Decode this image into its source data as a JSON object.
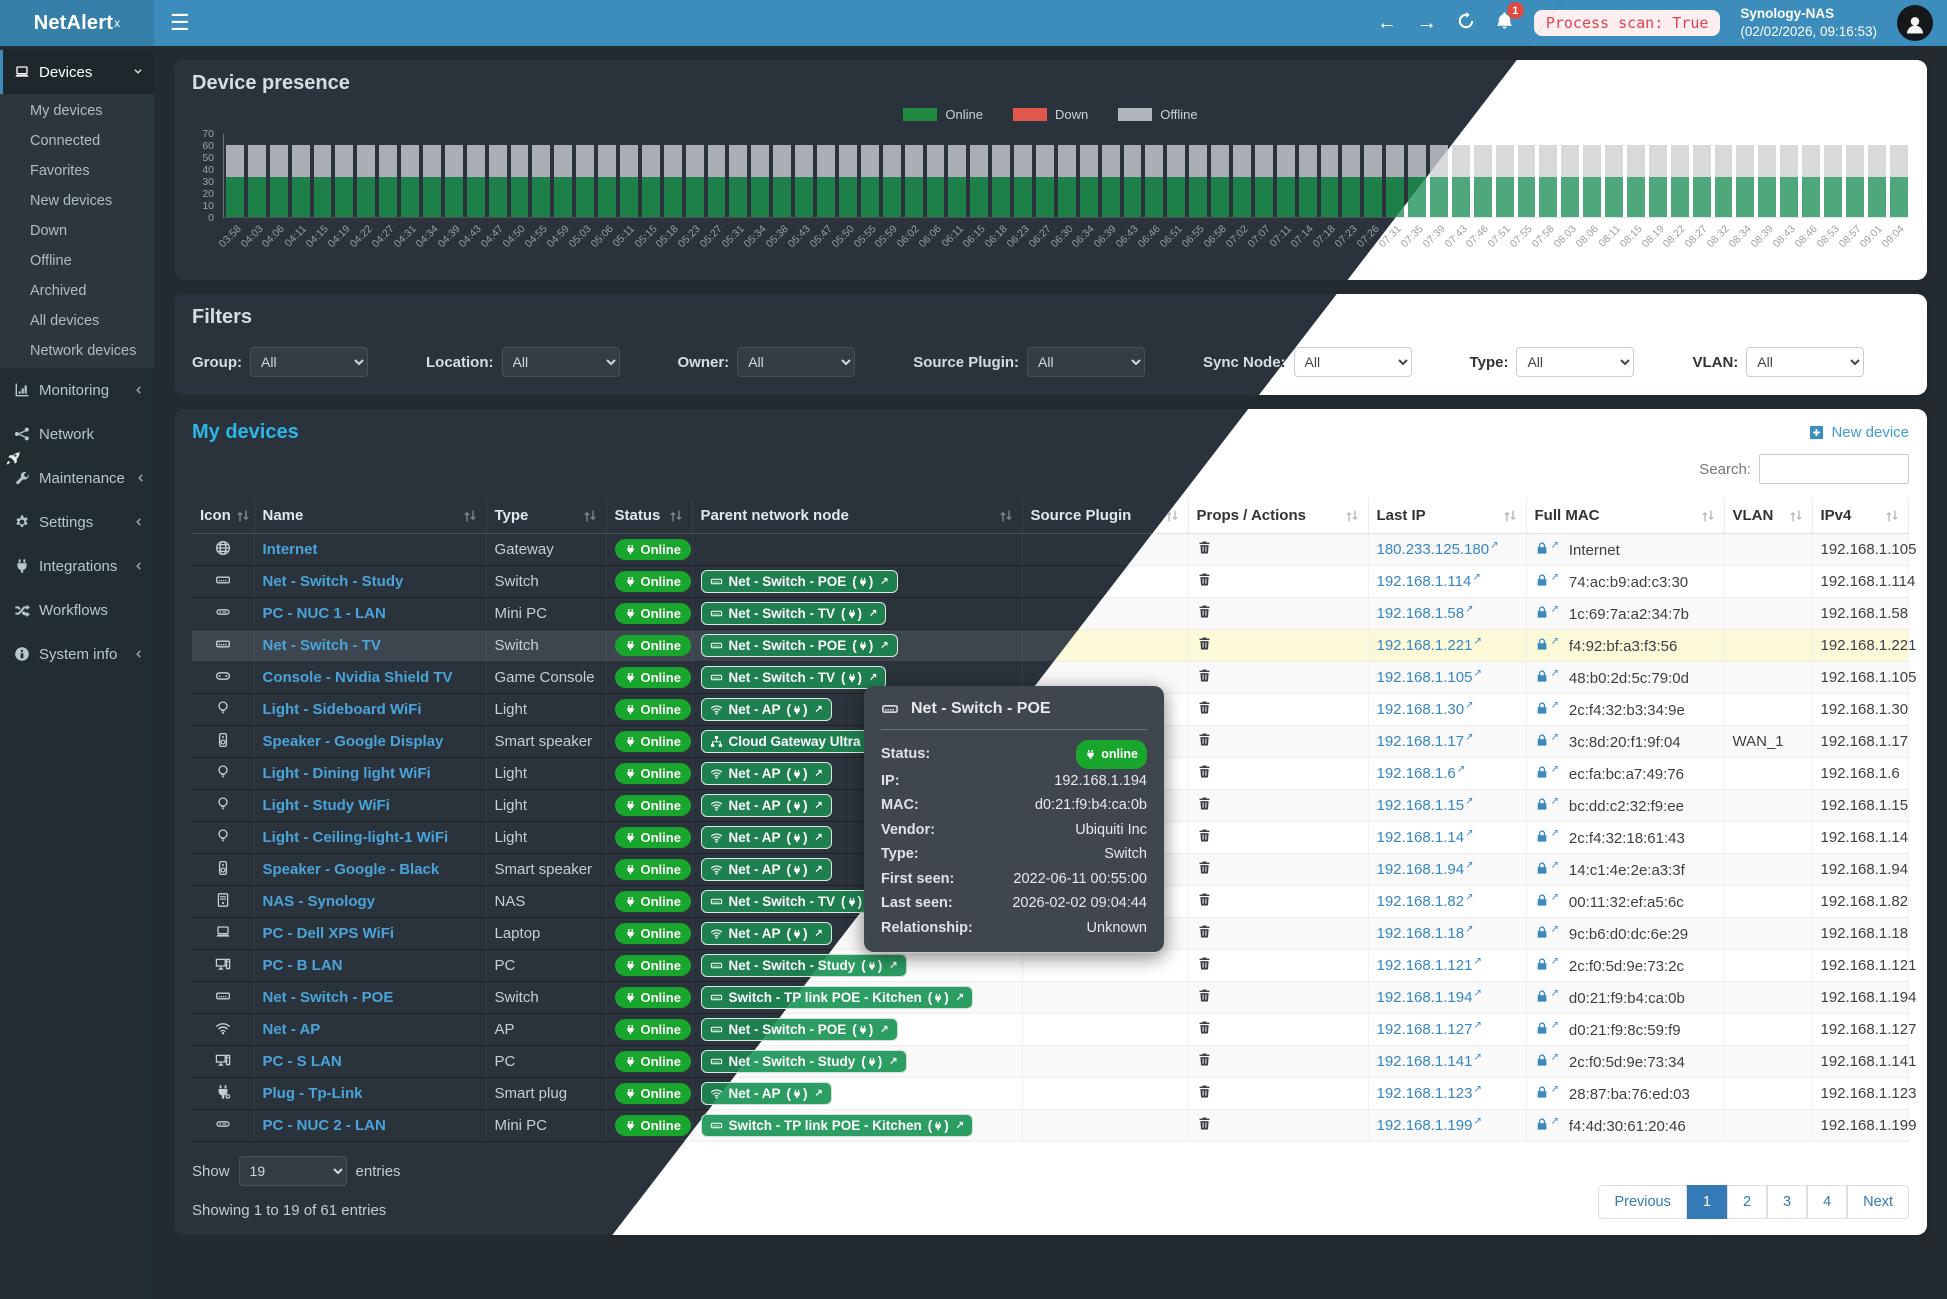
{
  "header": {
    "brand": "NetAlert",
    "brand_sup": "x",
    "notification_count": "1",
    "process_scan": "Process scan: True",
    "nas_name": "Synology-NAS",
    "nas_timestamp": "(02/02/2026, 09:16:53)"
  },
  "sidebar": {
    "sections": [
      {
        "label": "Devices",
        "icon": "laptop",
        "chevron": "down",
        "active": true,
        "items": [
          "My devices",
          "Connected",
          "Favorites",
          "New devices",
          "Down",
          "Offline",
          "Archived",
          "All devices",
          "Network devices"
        ]
      },
      {
        "label": "Monitoring",
        "icon": "chart",
        "chevron": "left"
      },
      {
        "label": "Network",
        "icon": "network",
        "chevron": ""
      },
      {
        "label": "Maintenance",
        "icon": "wrench",
        "chevron": "left"
      },
      {
        "label": "Settings",
        "icon": "gear",
        "chevron": "left"
      },
      {
        "label": "Integrations",
        "icon": "plug",
        "chevron": "left"
      },
      {
        "label": "Workflows",
        "icon": "shuffle",
        "chevron": ""
      },
      {
        "label": "System info",
        "icon": "info",
        "chevron": "left"
      }
    ]
  },
  "chart_data": {
    "type": "bar",
    "title": "Device presence",
    "stacked": true,
    "legend_position": "top-center",
    "ylim": [
      0,
      70
    ],
    "yticks": [
      0,
      10,
      20,
      30,
      40,
      50,
      60,
      70
    ],
    "legend": [
      {
        "label": "Online",
        "color": "#21883f"
      },
      {
        "label": "Down",
        "color": "#e2574c"
      },
      {
        "label": "Offline",
        "color": "#b1b6bc"
      }
    ],
    "x": [
      "03:58",
      "04:03",
      "04:06",
      "04:11",
      "04:15",
      "04:19",
      "04:22",
      "04:27",
      "04:31",
      "04:34",
      "04:39",
      "04:43",
      "04:47",
      "04:50",
      "04:55",
      "04:59",
      "05:03",
      "05:06",
      "05:11",
      "05:15",
      "05:18",
      "05:23",
      "05:27",
      "05:31",
      "05:34",
      "05:38",
      "05:43",
      "05:47",
      "05:50",
      "05:55",
      "05:59",
      "06:02",
      "06:06",
      "06:11",
      "06:15",
      "06:18",
      "06:23",
      "06:27",
      "06:30",
      "06:34",
      "06:39",
      "06:43",
      "06:46",
      "06:51",
      "06:55",
      "06:58",
      "07:02",
      "07:07",
      "07:11",
      "07:14",
      "07:18",
      "07:23",
      "07:26",
      "07:31",
      "07:35",
      "07:39",
      "07:43",
      "07:46",
      "07:51",
      "07:55",
      "07:58",
      "08:03",
      "08:06",
      "08:11",
      "08:15",
      "08:19",
      "08:22",
      "08:27",
      "08:32",
      "08:34",
      "08:39",
      "08:43",
      "08:46",
      "08:53",
      "08:57",
      "09:01",
      "09:04"
    ],
    "series": [
      {
        "name": "Online",
        "values": [
          34,
          34,
          34,
          34,
          34,
          34,
          34,
          34,
          34,
          34,
          34,
          34,
          34,
          34,
          34,
          34,
          34,
          34,
          34,
          34,
          34,
          34,
          34,
          34,
          34,
          34,
          34,
          34,
          34,
          34,
          34,
          34,
          34,
          34,
          34,
          34,
          34,
          34,
          34,
          34,
          34,
          34,
          34,
          34,
          34,
          34,
          34,
          34,
          34,
          34,
          34,
          34,
          34,
          34,
          34,
          34,
          34,
          34,
          34,
          34,
          34,
          34,
          34,
          34,
          34,
          34,
          34,
          34,
          34,
          34,
          34,
          34,
          34,
          34,
          34,
          34,
          34
        ]
      },
      {
        "name": "Down",
        "values": [
          0,
          0,
          0,
          0,
          0,
          0,
          0,
          0,
          0,
          0,
          0,
          0,
          0,
          0,
          0,
          0,
          0,
          0,
          0,
          0,
          0,
          0,
          0,
          0,
          0,
          0,
          0,
          0,
          0,
          0,
          0,
          0,
          0,
          0,
          0,
          0,
          0,
          0,
          0,
          0,
          0,
          0,
          0,
          0,
          0,
          0,
          0,
          0,
          0,
          0,
          0,
          0,
          0,
          0,
          0,
          0,
          0,
          0,
          0,
          0,
          0,
          0,
          0,
          0,
          0,
          0,
          0,
          0,
          0,
          0,
          0,
          0,
          0,
          0,
          0,
          0,
          0
        ]
      },
      {
        "name": "Offline",
        "values": [
          27,
          27,
          27,
          27,
          27,
          27,
          27,
          27,
          27,
          27,
          27,
          27,
          27,
          27,
          27,
          27,
          27,
          27,
          27,
          27,
          27,
          27,
          27,
          27,
          27,
          27,
          27,
          27,
          27,
          27,
          27,
          27,
          27,
          27,
          27,
          27,
          27,
          27,
          27,
          27,
          27,
          27,
          27,
          27,
          27,
          27,
          27,
          27,
          27,
          27,
          27,
          27,
          27,
          27,
          27,
          27,
          27,
          27,
          27,
          27,
          27,
          27,
          27,
          27,
          27,
          27,
          27,
          27,
          27,
          27,
          27,
          27,
          27,
          27,
          27,
          27,
          27
        ]
      }
    ]
  },
  "filters": {
    "title": "Filters",
    "items": [
      {
        "label": "Group:",
        "value": "All"
      },
      {
        "label": "Location:",
        "value": "All"
      },
      {
        "label": "Owner:",
        "value": "All"
      },
      {
        "label": "Source Plugin:",
        "value": "All"
      },
      {
        "label": "Sync Node:",
        "value": "All"
      },
      {
        "label": "Type:",
        "value": "All"
      },
      {
        "label": "VLAN:",
        "value": "All"
      }
    ]
  },
  "devices": {
    "title": "My devices",
    "new_device_label": "New device",
    "search_label": "Search:",
    "search_value": "",
    "columns": [
      "Icon",
      "Name",
      "Type",
      "Status",
      "Parent network node",
      "Source Plugin",
      "Props / Actions",
      "Last IP",
      "Full MAC",
      "VLAN",
      "IPv4"
    ],
    "rows": [
      {
        "icon": "globe",
        "name": "Internet",
        "type": "Gateway",
        "status": "Online",
        "parent": null,
        "source_plugin": "",
        "last_ip": "180.233.125.180",
        "mac": "Internet",
        "vlan": "",
        "ipv4": "192.168.1.105",
        "highlight": false
      },
      {
        "icon": "switch",
        "name": "Net - Switch - Study",
        "type": "Switch",
        "status": "Online",
        "parent": {
          "icon": "switch",
          "label": "Net - Switch - POE"
        },
        "source_plugin": "",
        "last_ip": "192.168.1.114",
        "mac": "74:ac:b9:ad:c3:30",
        "vlan": "",
        "ipv4": "192.168.1.114",
        "highlight": false
      },
      {
        "icon": "minipc",
        "name": "PC - NUC 1 - LAN",
        "type": "Mini PC",
        "status": "Online",
        "parent": {
          "icon": "switch",
          "label": "Net - Switch - TV"
        },
        "source_plugin": "",
        "last_ip": "192.168.1.58",
        "mac": "1c:69:7a:a2:34:7b",
        "vlan": "",
        "ipv4": "192.168.1.58",
        "highlight": false
      },
      {
        "icon": "switch",
        "name": "Net - Switch - TV",
        "type": "Switch",
        "status": "Online",
        "parent": {
          "icon": "switch",
          "label": "Net - Switch - POE"
        },
        "source_plugin": "",
        "last_ip": "192.168.1.221",
        "mac": "f4:92:bf:a3:f3:56",
        "vlan": "",
        "ipv4": "192.168.1.221",
        "highlight": true
      },
      {
        "icon": "gamepad",
        "name": "Console - Nvidia Shield TV",
        "type": "Game Console",
        "status": "Online",
        "parent": {
          "icon": "switch",
          "label": "Net - Switch - TV"
        },
        "source_plugin": "",
        "last_ip": "192.168.1.105",
        "mac": "48:b0:2d:5c:79:0d",
        "vlan": "",
        "ipv4": "192.168.1.105",
        "highlight": false
      },
      {
        "icon": "bulb",
        "name": "Light - Sideboard WiFi",
        "type": "Light",
        "status": "Online",
        "parent": {
          "icon": "wifi",
          "label": "Net - AP"
        },
        "source_plugin": "",
        "last_ip": "192.168.1.30",
        "mac": "2c:f4:32:b3:34:9e",
        "vlan": "",
        "ipv4": "192.168.1.30",
        "highlight": false
      },
      {
        "icon": "speaker",
        "name": "Speaker - Google Display",
        "type": "Smart speaker",
        "status": "Online",
        "parent": {
          "icon": "sitemap",
          "label": "Cloud Gateway Ultra"
        },
        "source_plugin": "",
        "last_ip": "192.168.1.17",
        "mac": "3c:8d:20:f1:9f:04",
        "vlan": "WAN_1",
        "ipv4": "192.168.1.17",
        "highlight": false
      },
      {
        "icon": "bulb",
        "name": "Light - Dining light WiFi",
        "type": "Light",
        "status": "Online",
        "parent": {
          "icon": "wifi",
          "label": "Net - AP"
        },
        "source_plugin": "",
        "last_ip": "192.168.1.6",
        "mac": "ec:fa:bc:a7:49:76",
        "vlan": "",
        "ipv4": "192.168.1.6",
        "highlight": false
      },
      {
        "icon": "bulb",
        "name": "Light - Study WiFi",
        "type": "Light",
        "status": "Online",
        "parent": {
          "icon": "wifi",
          "label": "Net - AP"
        },
        "source_plugin": "",
        "last_ip": "192.168.1.15",
        "mac": "bc:dd:c2:32:f9:ee",
        "vlan": "",
        "ipv4": "192.168.1.15",
        "highlight": false
      },
      {
        "icon": "bulb",
        "name": "Light - Ceiling-light-1 WiFi",
        "type": "Light",
        "status": "Online",
        "parent": {
          "icon": "wifi",
          "label": "Net - AP"
        },
        "source_plugin": "",
        "last_ip": "192.168.1.14",
        "mac": "2c:f4:32:18:61:43",
        "vlan": "",
        "ipv4": "192.168.1.14",
        "highlight": false
      },
      {
        "icon": "speaker",
        "name": "Speaker - Google - Black",
        "type": "Smart speaker",
        "status": "Online",
        "parent": {
          "icon": "wifi",
          "label": "Net - AP"
        },
        "source_plugin": "",
        "last_ip": "192.168.1.94",
        "mac": "14:c1:4e:2e:a3:3f",
        "vlan": "",
        "ipv4": "192.168.1.94",
        "highlight": false
      },
      {
        "icon": "nas",
        "name": "NAS - Synology",
        "type": "NAS",
        "status": "Online",
        "parent": {
          "icon": "switch",
          "label": "Net - Switch - TV"
        },
        "source_plugin": "",
        "last_ip": "192.168.1.82",
        "mac": "00:11:32:ef:a5:6c",
        "vlan": "",
        "ipv4": "192.168.1.82",
        "highlight": false
      },
      {
        "icon": "laptop",
        "name": "PC - Dell XPS WiFi",
        "type": "Laptop",
        "status": "Online",
        "parent": {
          "icon": "wifi",
          "label": "Net - AP"
        },
        "source_plugin": "",
        "last_ip": "192.168.1.18",
        "mac": "9c:b6:d0:dc:6e:29",
        "vlan": "",
        "ipv4": "192.168.1.18",
        "highlight": false
      },
      {
        "icon": "desktop",
        "name": "PC - B LAN",
        "type": "PC",
        "status": "Online",
        "parent": {
          "icon": "switch",
          "label": "Net - Switch - Study"
        },
        "source_plugin": "",
        "last_ip": "192.168.1.121",
        "mac": "2c:f0:5d:9e:73:2c",
        "vlan": "",
        "ipv4": "192.168.1.121",
        "highlight": false
      },
      {
        "icon": "switch",
        "name": "Net - Switch - POE",
        "type": "Switch",
        "status": "Online",
        "parent": {
          "icon": "switch",
          "label": "Switch - TP link POE - Kitchen"
        },
        "source_plugin": "",
        "last_ip": "192.168.1.194",
        "mac": "d0:21:f9:b4:ca:0b",
        "vlan": "",
        "ipv4": "192.168.1.194",
        "highlight": false
      },
      {
        "icon": "wifi",
        "name": "Net - AP",
        "type": "AP",
        "status": "Online",
        "parent": {
          "icon": "switch",
          "label": "Net - Switch - POE"
        },
        "source_plugin": "",
        "last_ip": "192.168.1.127",
        "mac": "d0:21:f9:8c:59:f9",
        "vlan": "",
        "ipv4": "192.168.1.127",
        "highlight": false
      },
      {
        "icon": "desktop",
        "name": "PC - S LAN",
        "type": "PC",
        "status": "Online",
        "parent": {
          "icon": "switch",
          "label": "Net - Switch - Study"
        },
        "source_plugin": "",
        "last_ip": "192.168.1.141",
        "mac": "2c:f0:5d:9e:73:34",
        "vlan": "",
        "ipv4": "192.168.1.141",
        "highlight": false
      },
      {
        "icon": "smartplug",
        "name": "Plug - Tp-Link",
        "type": "Smart plug",
        "status": "Online",
        "parent": {
          "icon": "wifi",
          "label": "Net - AP"
        },
        "source_plugin": "",
        "last_ip": "192.168.1.123",
        "mac": "28:87:ba:76:ed:03",
        "vlan": "",
        "ipv4": "192.168.1.123",
        "highlight": false
      },
      {
        "icon": "minipc",
        "name": "PC - NUC 2 - LAN",
        "type": "Mini PC",
        "status": "Online",
        "parent": {
          "icon": "switch",
          "label": "Switch - TP link POE - Kitchen"
        },
        "source_plugin": "",
        "last_ip": "192.168.1.199",
        "mac": "f4:4d:30:61:20:46",
        "vlan": "",
        "ipv4": "192.168.1.199",
        "highlight": false
      }
    ],
    "show_label": "Show",
    "show_value": "19",
    "entries_label": "entries",
    "summary": "Showing 1 to 19 of 61 entries",
    "pagination": {
      "items": [
        "Previous",
        "1",
        "2",
        "3",
        "4",
        "Next"
      ],
      "active": "1"
    }
  },
  "tooltip": {
    "icon": "switch",
    "title": "Net - Switch - POE",
    "fields": [
      {
        "label": "Status:",
        "value": "online",
        "badge": true
      },
      {
        "label": "IP:",
        "value": "192.168.1.194"
      },
      {
        "label": "MAC:",
        "value": "d0:21:f9:b4:ca:0b"
      },
      {
        "label": "Vendor:",
        "value": "Ubiquiti Inc"
      },
      {
        "label": "Type:",
        "value": "Switch"
      },
      {
        "label": "First seen:",
        "value": "2022-06-11 00:55:00"
      },
      {
        "label": "Last seen:",
        "value": "2026-02-02 09:04:44"
      },
      {
        "label": "Relationship:",
        "value": "Unknown"
      }
    ]
  },
  "colors": {
    "accent_blue": "#3c8dbc",
    "title_cyan": "#2cb5e8",
    "online_green": "#18a62c",
    "chip_green": "#1e7f4f",
    "down_red": "#e2574c",
    "offline_gray": "#b1b6bc",
    "highlight_yellow": "#fcf9d8",
    "scan_chip_red": "#dd4550"
  },
  "icons": [
    "hamburger-icon",
    "back-arrow-icon",
    "forward-arrow-icon",
    "refresh-icon",
    "bell-icon",
    "user-avatar-icon",
    "laptop-icon",
    "chart-icon",
    "network-icon",
    "wrench-icon",
    "gear-icon",
    "plug-icon",
    "shuffle-icon",
    "info-icon",
    "rocket-icon",
    "globe-icon",
    "switch-icon",
    "minipc-icon",
    "gamepad-icon",
    "bulb-icon",
    "speaker-icon",
    "nas-icon",
    "desktop-icon",
    "wifi-icon",
    "smartplug-icon",
    "sitemap-icon",
    "lock-icon",
    "trash-icon",
    "sort-icon",
    "plus-square-icon",
    "external-link-icon",
    "chevron-down-icon",
    "chevron-left-icon"
  ]
}
